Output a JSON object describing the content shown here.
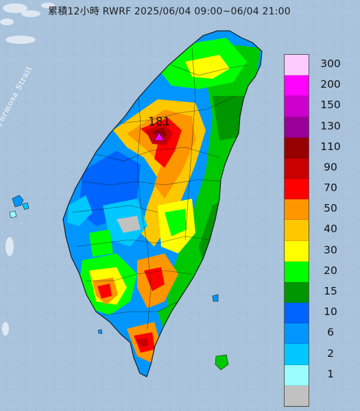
{
  "title": "累積12小時 RWRF 2025/06/04 09:00~06/04 21:00",
  "sea_label": "Formosa Strait",
  "peak": {
    "value": "181",
    "marker_color": "#ff00ff"
  },
  "colors": {
    "sea": "#a9c3dc",
    "land_border": "#222222"
  },
  "legend": {
    "bins": [
      {
        "label": "300",
        "color": "#fdcbfd"
      },
      {
        "label": "200",
        "color": "#fe03fe"
      },
      {
        "label": "150",
        "color": "#cc00cc"
      },
      {
        "label": "130",
        "color": "#990099"
      },
      {
        "label": "110",
        "color": "#960000"
      },
      {
        "label": "90",
        "color": "#c80000"
      },
      {
        "label": "70",
        "color": "#fe0000"
      },
      {
        "label": "50",
        "color": "#fe9600"
      },
      {
        "label": "40",
        "color": "#fec800"
      },
      {
        "label": "30",
        "color": "#fefe00"
      },
      {
        "label": "20",
        "color": "#00fe00"
      },
      {
        "label": "15",
        "color": "#009600"
      },
      {
        "label": "10",
        "color": "#0064fe"
      },
      {
        "label": "6",
        "color": "#0096fe"
      },
      {
        "label": "2",
        "color": "#00c8fe"
      },
      {
        "label": "1",
        "color": "#9bfefe"
      },
      {
        "label": "",
        "color": "#c1c1c1"
      }
    ]
  }
}
